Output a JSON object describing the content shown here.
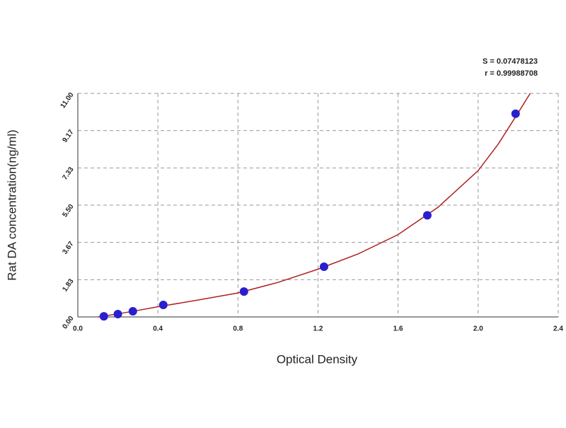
{
  "chart_data": {
    "type": "scatter",
    "x_label": "Optical Density",
    "y_label": "Rat DA concentration(ng/ml)",
    "annotations": [
      "S = 0.07478123",
      "r = 0.99988708"
    ],
    "xlim": [
      0,
      2.4
    ],
    "xticks": [
      {
        "value": 0,
        "label": "0.0"
      },
      0.4,
      0.8,
      1.2,
      1.6,
      {
        "value": 2,
        "label": "2.0"
      },
      2.4
    ],
    "ylim": [
      0,
      11
    ],
    "yticks": [
      {
        "value": 0,
        "label": "0.00"
      },
      1.83,
      3.67,
      {
        "value": 5.5,
        "label": "5.50"
      },
      7.33,
      9.17,
      {
        "value": 11,
        "label": "11.00"
      }
    ],
    "grid": true,
    "series": [
      {
        "type": "scatter",
        "color": "#2a1fd0",
        "x": [
          0.13,
          0.2,
          0.275,
          0.427,
          0.83,
          1.23,
          1.746,
          2.187
        ],
        "values": [
          0.03,
          0.14,
          0.28,
          0.59,
          1.25,
          2.47,
          5.0,
          10.0
        ]
      },
      {
        "type": "line",
        "color": "#b02020",
        "x": [
          0.1,
          0.2,
          0.3,
          0.4,
          0.6,
          0.8,
          1.0,
          1.2,
          1.4,
          1.6,
          1.8,
          2.0,
          2.1,
          2.2,
          2.26
        ],
        "values": [
          0.0,
          0.15,
          0.32,
          0.5,
          0.83,
          1.18,
          1.7,
          2.35,
          3.1,
          4.05,
          5.4,
          7.2,
          8.5,
          10.05,
          11.0
        ]
      }
    ]
  }
}
